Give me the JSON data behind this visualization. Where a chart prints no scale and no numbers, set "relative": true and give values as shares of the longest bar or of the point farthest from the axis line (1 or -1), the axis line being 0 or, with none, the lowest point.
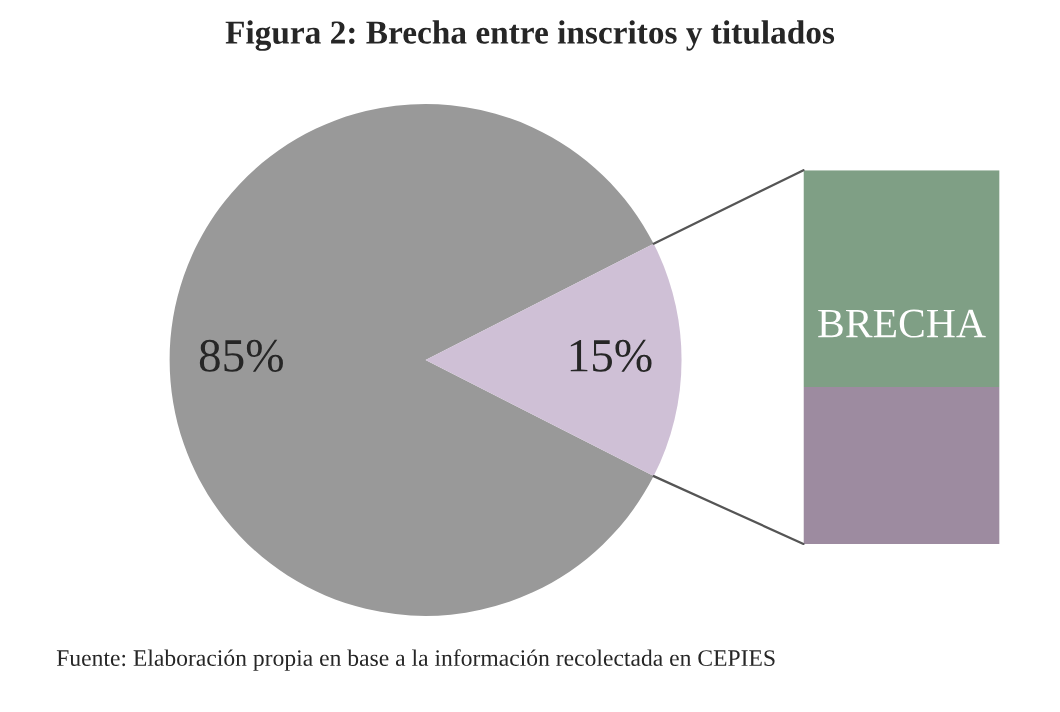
{
  "chart_data": [
    {
      "type": "pie",
      "title": "Figura 2: Brecha entre inscritos y titulados",
      "categories": [
        null,
        null
      ],
      "values": [
        85,
        15
      ],
      "colors": [
        "#999999",
        "#cfc0d6"
      ],
      "value_labels": [
        "85%",
        "15%"
      ],
      "annotations": [
        "Fuente: Elaboración propia en base a la información recolectada en CEPIES"
      ]
    },
    {
      "type": "bar",
      "stacked": true,
      "relative": true,
      "categories": [
        null
      ],
      "annotations": [
        "BRECHA"
      ],
      "series": [
        {
          "color": "#9d8ba0",
          "values": [
            0.42
          ]
        },
        {
          "color": "#7f9f85",
          "values": [
            0.58
          ]
        }
      ]
    }
  ]
}
